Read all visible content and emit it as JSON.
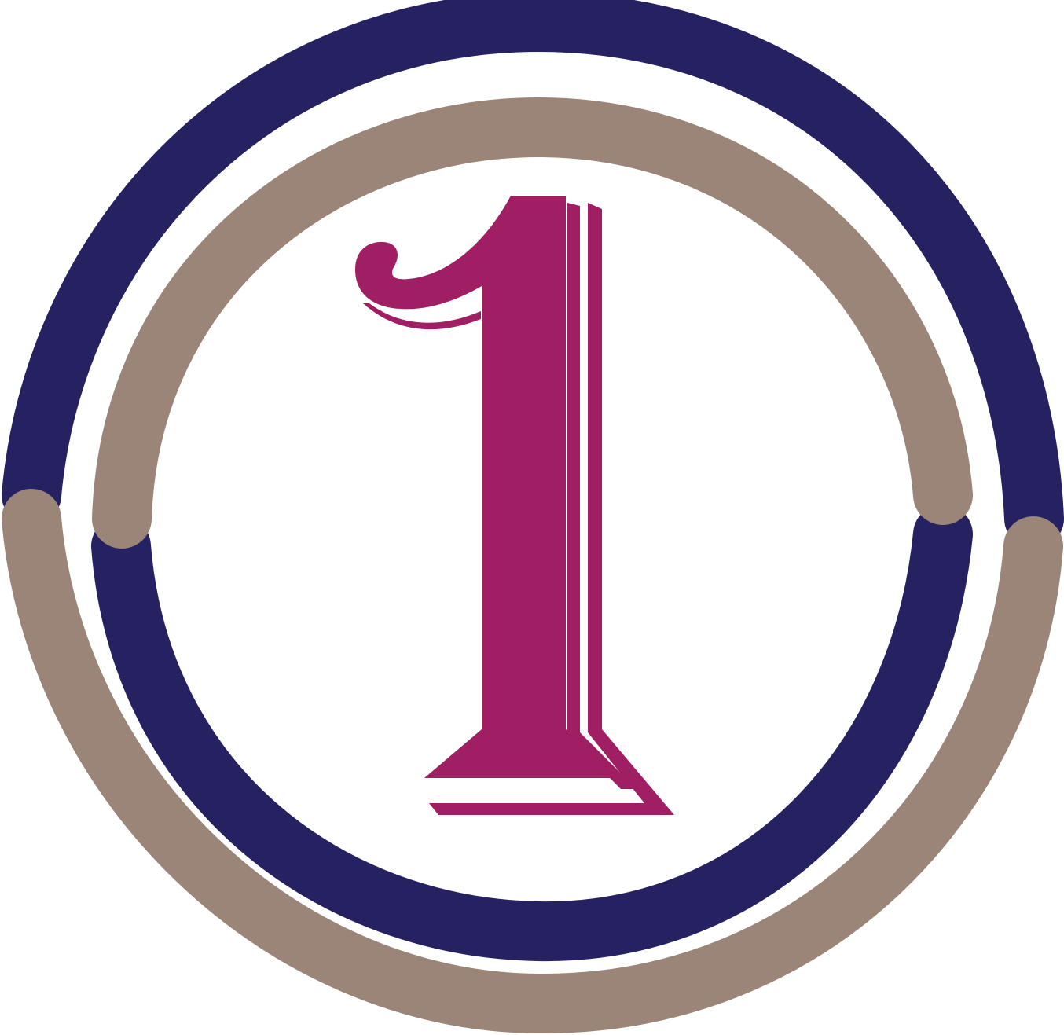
{
  "logo": {
    "numeral": "1",
    "colors": {
      "background": "#ffffff",
      "navy_ring": "#262262",
      "taupe_ring": "#9b8578",
      "numeral": "#a01e63"
    },
    "icon_names": [
      "number-one-icon",
      "navy-ring-arc",
      "taupe-ring-arc"
    ]
  }
}
